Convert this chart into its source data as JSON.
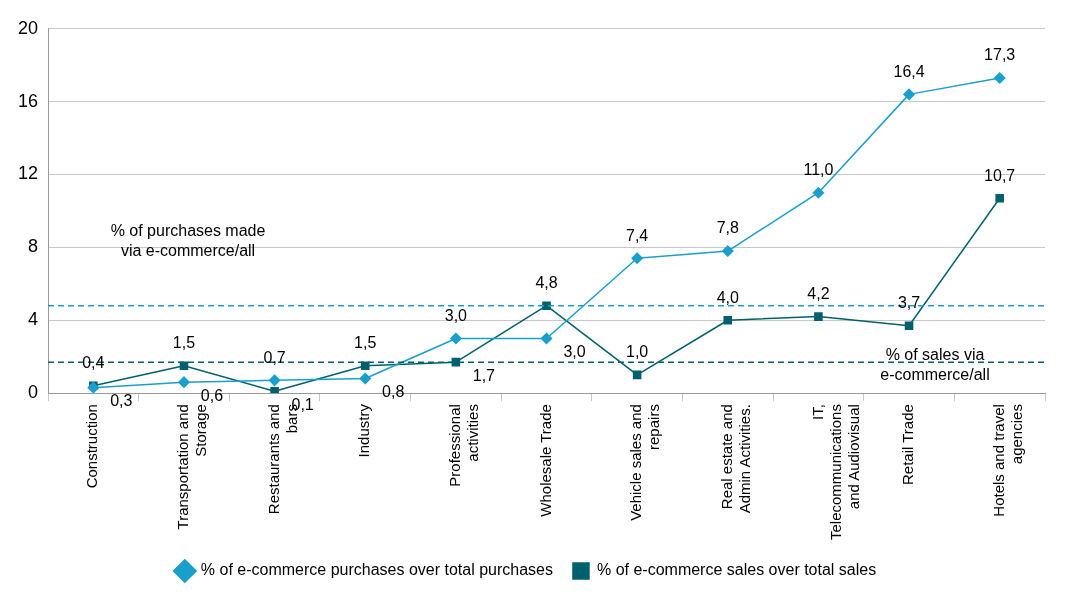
{
  "chart_data": {
    "type": "line",
    "categories": [
      "Construction",
      "Transportation and Storage",
      "Restaurants and bars",
      "Industry",
      "Professional activities",
      "Wholesale Trade",
      "Vehicle sales and repairs",
      "Real estate and Admin Activities.",
      "IT, Telecommunications and Audiovisual",
      "Retail Trade",
      "Hotels and travel agencies"
    ],
    "series": [
      {
        "name": "% of e-commerce purchases over total purchases",
        "color": "#1a9fcc",
        "marker": "diamond",
        "values": [
          0.3,
          0.6,
          0.7,
          0.8,
          3.0,
          3.0,
          7.4,
          7.8,
          11.0,
          16.4,
          17.3
        ],
        "value_labels": [
          "0,3",
          "0,6",
          "0,7",
          "0,8",
          "3,0",
          "3,0",
          "7,4",
          "7,8",
          "11,0",
          "16,4",
          "17,3"
        ]
      },
      {
        "name": "% of e-commerce sales over total sales",
        "color": "#00606e",
        "marker": "square",
        "values": [
          0.4,
          1.5,
          0.1,
          1.5,
          1.7,
          4.8,
          1.0,
          4.0,
          4.2,
          3.7,
          10.7
        ],
        "value_labels": [
          "0,4",
          "1,5",
          "0,1",
          "1,5",
          "1,7",
          "4,8",
          "1,0",
          "4,0",
          "4,2",
          "3,7",
          "10,7"
        ]
      }
    ],
    "ylim": [
      0,
      20
    ],
    "yticks": [
      0,
      4,
      8,
      12,
      16,
      20
    ],
    "grid": "y",
    "legend": "bottom",
    "line_style": "solid",
    "ref_lines": [
      {
        "axis": "y",
        "value": 4.8,
        "label": "% of purchases made via e-commerce/all",
        "color": "#1a9fcc",
        "line_style": "dashed"
      },
      {
        "axis": "y",
        "value": 1.7,
        "label": "% of sales via e-commerce/all",
        "color": "#00606e",
        "line_style": "dashed"
      }
    ]
  }
}
